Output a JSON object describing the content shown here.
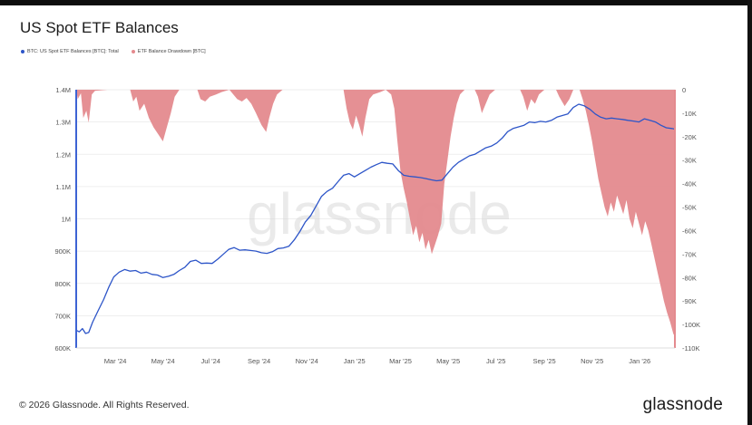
{
  "page": {
    "title": "US Spot ETF Balances",
    "footer_copyright": "© 2026 Glassnode. All Rights Reserved.",
    "brand": "glassnode",
    "watermark": "glassnode"
  },
  "colors": {
    "balance_line": "#2d55c8",
    "drawdown_fill": "#e48a8e",
    "left_axis": "#3d63d4",
    "right_axis": "#e48a8e",
    "grid": "#e9e9e9"
  },
  "chart_data": {
    "type": "line",
    "title": "US Spot ETF Balances",
    "legend_position": "top-left",
    "grid": true,
    "x_ticks": [
      "Mar '24",
      "May '24",
      "Jul '24",
      "Sep '24",
      "Nov '24",
      "Jan '25",
      "Mar '25",
      "May '25",
      "Jul '25",
      "Sep '25",
      "Nov '25",
      "Jan '26"
    ],
    "left_axis": {
      "ticks": [
        "600K",
        "700K",
        "800K",
        "900K",
        "1M",
        "1.1M",
        "1.2M",
        "1.3M",
        "1.4M"
      ],
      "ylim": [
        600000,
        1400000
      ]
    },
    "right_axis": {
      "ticks": [
        "0",
        "-10K",
        "-20K",
        "-30K",
        "-40K",
        "-50K",
        "-60K",
        "-70K",
        "-80K",
        "-90K",
        "-100K",
        "-110K"
      ],
      "ylim": [
        -110000,
        0
      ]
    },
    "x_range": [
      "2024-01-11",
      "2026-02-15"
    ],
    "series": [
      {
        "name": "BTC: US Spot ETF Balances [BTC]: Total",
        "axis": "left",
        "style": "line",
        "points": [
          [
            "2024-01-11",
            655000
          ],
          [
            "2024-01-15",
            650000
          ],
          [
            "2024-01-19",
            660000
          ],
          [
            "2024-01-23",
            645000
          ],
          [
            "2024-01-27",
            648000
          ],
          [
            "2024-02-01",
            680000
          ],
          [
            "2024-02-08",
            715000
          ],
          [
            "2024-02-15",
            750000
          ],
          [
            "2024-02-22",
            790000
          ],
          [
            "2024-02-28",
            820000
          ],
          [
            "2024-03-06",
            835000
          ],
          [
            "2024-03-13",
            843000
          ],
          [
            "2024-03-20",
            838000
          ],
          [
            "2024-03-27",
            840000
          ],
          [
            "2024-04-03",
            832000
          ],
          [
            "2024-04-10",
            835000
          ],
          [
            "2024-04-17",
            828000
          ],
          [
            "2024-04-24",
            826000
          ],
          [
            "2024-05-01",
            818000
          ],
          [
            "2024-05-08",
            822000
          ],
          [
            "2024-05-15",
            828000
          ],
          [
            "2024-05-22",
            840000
          ],
          [
            "2024-05-29",
            850000
          ],
          [
            "2024-06-05",
            868000
          ],
          [
            "2024-06-12",
            872000
          ],
          [
            "2024-06-19",
            862000
          ],
          [
            "2024-06-26",
            863000
          ],
          [
            "2024-07-03",
            862000
          ],
          [
            "2024-07-10",
            875000
          ],
          [
            "2024-07-17",
            890000
          ],
          [
            "2024-07-24",
            905000
          ],
          [
            "2024-07-31",
            911000
          ],
          [
            "2024-08-07",
            903000
          ],
          [
            "2024-08-14",
            904000
          ],
          [
            "2024-08-21",
            902000
          ],
          [
            "2024-08-28",
            900000
          ],
          [
            "2024-09-04",
            895000
          ],
          [
            "2024-09-11",
            893000
          ],
          [
            "2024-09-18",
            898000
          ],
          [
            "2024-09-25",
            908000
          ],
          [
            "2024-10-02",
            910000
          ],
          [
            "2024-10-09",
            915000
          ],
          [
            "2024-10-16",
            935000
          ],
          [
            "2024-10-23",
            960000
          ],
          [
            "2024-10-30",
            990000
          ],
          [
            "2024-11-06",
            1010000
          ],
          [
            "2024-11-13",
            1040000
          ],
          [
            "2024-11-20",
            1070000
          ],
          [
            "2024-11-27",
            1085000
          ],
          [
            "2024-12-04",
            1095000
          ],
          [
            "2024-12-11",
            1115000
          ],
          [
            "2024-12-18",
            1135000
          ],
          [
            "2024-12-25",
            1140000
          ],
          [
            "2025-01-01",
            1130000
          ],
          [
            "2025-01-08",
            1140000
          ],
          [
            "2025-01-15",
            1150000
          ],
          [
            "2025-01-22",
            1160000
          ],
          [
            "2025-01-29",
            1168000
          ],
          [
            "2025-02-05",
            1175000
          ],
          [
            "2025-02-12",
            1172000
          ],
          [
            "2025-02-19",
            1170000
          ],
          [
            "2025-02-26",
            1150000
          ],
          [
            "2025-03-05",
            1135000
          ],
          [
            "2025-03-12",
            1132000
          ],
          [
            "2025-03-19",
            1130000
          ],
          [
            "2025-03-26",
            1128000
          ],
          [
            "2025-04-02",
            1125000
          ],
          [
            "2025-04-09",
            1121000
          ],
          [
            "2025-04-16",
            1118000
          ],
          [
            "2025-04-23",
            1120000
          ],
          [
            "2025-04-30",
            1140000
          ],
          [
            "2025-05-07",
            1160000
          ],
          [
            "2025-05-14",
            1175000
          ],
          [
            "2025-05-21",
            1185000
          ],
          [
            "2025-05-28",
            1195000
          ],
          [
            "2025-06-04",
            1200000
          ],
          [
            "2025-06-11",
            1210000
          ],
          [
            "2025-06-18",
            1220000
          ],
          [
            "2025-06-25",
            1225000
          ],
          [
            "2025-07-02",
            1235000
          ],
          [
            "2025-07-09",
            1250000
          ],
          [
            "2025-07-16",
            1270000
          ],
          [
            "2025-07-23",
            1280000
          ],
          [
            "2025-07-30",
            1285000
          ],
          [
            "2025-08-06",
            1290000
          ],
          [
            "2025-08-13",
            1300000
          ],
          [
            "2025-08-20",
            1298000
          ],
          [
            "2025-08-27",
            1302000
          ],
          [
            "2025-09-03",
            1300000
          ],
          [
            "2025-09-10",
            1305000
          ],
          [
            "2025-09-17",
            1315000
          ],
          [
            "2025-09-24",
            1320000
          ],
          [
            "2025-10-01",
            1325000
          ],
          [
            "2025-10-08",
            1345000
          ],
          [
            "2025-10-15",
            1355000
          ],
          [
            "2025-10-22",
            1350000
          ],
          [
            "2025-10-29",
            1340000
          ],
          [
            "2025-11-05",
            1325000
          ],
          [
            "2025-11-12",
            1315000
          ],
          [
            "2025-11-19",
            1310000
          ],
          [
            "2025-11-26",
            1312000
          ],
          [
            "2025-12-03",
            1310000
          ],
          [
            "2025-12-10",
            1308000
          ],
          [
            "2025-12-17",
            1305000
          ],
          [
            "2025-12-24",
            1303000
          ],
          [
            "2025-12-31",
            1300000
          ],
          [
            "2026-01-07",
            1310000
          ],
          [
            "2026-01-14",
            1305000
          ],
          [
            "2026-01-21",
            1300000
          ],
          [
            "2026-01-28",
            1290000
          ],
          [
            "2026-02-04",
            1282000
          ],
          [
            "2026-02-11",
            1280000
          ],
          [
            "2026-02-15",
            1278000
          ]
        ]
      },
      {
        "name": "ETF Balance Drawdown [BTC]",
        "axis": "right",
        "style": "area",
        "points": [
          [
            "2024-01-11",
            0
          ],
          [
            "2024-01-13",
            -4000
          ],
          [
            "2024-01-17",
            -1500
          ],
          [
            "2024-01-20",
            -12000
          ],
          [
            "2024-01-24",
            -9000
          ],
          [
            "2024-01-27",
            -14000
          ],
          [
            "2024-01-31",
            -2000
          ],
          [
            "2024-02-04",
            -500
          ],
          [
            "2024-02-20",
            0
          ],
          [
            "2024-03-20",
            0
          ],
          [
            "2024-03-24",
            -5000
          ],
          [
            "2024-03-28",
            -3000
          ],
          [
            "2024-04-01",
            -9000
          ],
          [
            "2024-04-07",
            -6000
          ],
          [
            "2024-04-13",
            -12000
          ],
          [
            "2024-04-19",
            -16000
          ],
          [
            "2024-04-25",
            -19000
          ],
          [
            "2024-05-01",
            -22000
          ],
          [
            "2024-05-06",
            -16000
          ],
          [
            "2024-05-11",
            -10000
          ],
          [
            "2024-05-16",
            -3000
          ],
          [
            "2024-05-22",
            0
          ],
          [
            "2024-06-14",
            0
          ],
          [
            "2024-06-18",
            -4000
          ],
          [
            "2024-06-24",
            -5000
          ],
          [
            "2024-06-30",
            -3000
          ],
          [
            "2024-07-08",
            -2000
          ],
          [
            "2024-07-15",
            -1000
          ],
          [
            "2024-07-25",
            0
          ],
          [
            "2024-08-04",
            -4000
          ],
          [
            "2024-08-10",
            -5000
          ],
          [
            "2024-08-16",
            -3500
          ],
          [
            "2024-08-22",
            -6000
          ],
          [
            "2024-08-28",
            -10000
          ],
          [
            "2024-09-04",
            -15000
          ],
          [
            "2024-09-10",
            -18000
          ],
          [
            "2024-09-14",
            -12000
          ],
          [
            "2024-09-19",
            -6000
          ],
          [
            "2024-09-24",
            -2000
          ],
          [
            "2024-10-01",
            0
          ],
          [
            "2024-12-18",
            0
          ],
          [
            "2024-12-22",
            -8000
          ],
          [
            "2024-12-26",
            -14000
          ],
          [
            "2024-12-30",
            -17000
          ],
          [
            "2025-01-03",
            -11000
          ],
          [
            "2025-01-07",
            -15000
          ],
          [
            "2025-01-11",
            -20000
          ],
          [
            "2025-01-15",
            -12000
          ],
          [
            "2025-01-20",
            -4000
          ],
          [
            "2025-01-25",
            -2000
          ],
          [
            "2025-02-03",
            -1000
          ],
          [
            "2025-02-10",
            0
          ],
          [
            "2025-02-17",
            -2000
          ],
          [
            "2025-02-21",
            -8000
          ],
          [
            "2025-02-25",
            -22000
          ],
          [
            "2025-03-01",
            -35000
          ],
          [
            "2025-03-05",
            -42000
          ],
          [
            "2025-03-09",
            -48000
          ],
          [
            "2025-03-13",
            -55000
          ],
          [
            "2025-03-17",
            -62000
          ],
          [
            "2025-03-21",
            -58000
          ],
          [
            "2025-03-25",
            -65000
          ],
          [
            "2025-03-29",
            -61000
          ],
          [
            "2025-04-02",
            -68000
          ],
          [
            "2025-04-06",
            -64000
          ],
          [
            "2025-04-10",
            -70000
          ],
          [
            "2025-04-14",
            -66000
          ],
          [
            "2025-04-18",
            -62000
          ],
          [
            "2025-04-22",
            -57000
          ],
          [
            "2025-04-26",
            -40000
          ],
          [
            "2025-04-30",
            -30000
          ],
          [
            "2025-05-04",
            -20000
          ],
          [
            "2025-05-08",
            -12000
          ],
          [
            "2025-05-12",
            -6000
          ],
          [
            "2025-05-16",
            -2000
          ],
          [
            "2025-05-22",
            0
          ],
          [
            "2025-06-04",
            0
          ],
          [
            "2025-06-08",
            -3000
          ],
          [
            "2025-06-13",
            -10000
          ],
          [
            "2025-06-18",
            -6000
          ],
          [
            "2025-06-23",
            -2000
          ],
          [
            "2025-06-30",
            0
          ],
          [
            "2025-08-01",
            0
          ],
          [
            "2025-08-05",
            -3000
          ],
          [
            "2025-08-10",
            -9000
          ],
          [
            "2025-08-15",
            -4000
          ],
          [
            "2025-08-20",
            -6000
          ],
          [
            "2025-08-25",
            -2000
          ],
          [
            "2025-09-01",
            0
          ],
          [
            "2025-09-16",
            0
          ],
          [
            "2025-09-20",
            -3000
          ],
          [
            "2025-09-27",
            -7000
          ],
          [
            "2025-10-03",
            -4000
          ],
          [
            "2025-10-08",
            0
          ],
          [
            "2025-10-16",
            0
          ],
          [
            "2025-10-20",
            -4000
          ],
          [
            "2025-10-24",
            -9000
          ],
          [
            "2025-10-28",
            -15000
          ],
          [
            "2025-11-01",
            -22000
          ],
          [
            "2025-11-05",
            -30000
          ],
          [
            "2025-11-09",
            -38000
          ],
          [
            "2025-11-13",
            -44000
          ],
          [
            "2025-11-17",
            -50000
          ],
          [
            "2025-11-21",
            -54000
          ],
          [
            "2025-11-25",
            -48000
          ],
          [
            "2025-11-29",
            -52000
          ],
          [
            "2025-12-03",
            -45000
          ],
          [
            "2025-12-07",
            -49000
          ],
          [
            "2025-12-11",
            -53000
          ],
          [
            "2025-12-15",
            -47000
          ],
          [
            "2025-12-19",
            -55000
          ],
          [
            "2025-12-23",
            -59000
          ],
          [
            "2025-12-27",
            -52000
          ],
          [
            "2025-12-31",
            -57000
          ],
          [
            "2026-01-04",
            -62000
          ],
          [
            "2026-01-08",
            -56000
          ],
          [
            "2026-01-12",
            -60000
          ],
          [
            "2026-01-16",
            -66000
          ],
          [
            "2026-01-20",
            -72000
          ],
          [
            "2026-01-24",
            -78000
          ],
          [
            "2026-01-28",
            -84000
          ],
          [
            "2026-02-01",
            -90000
          ],
          [
            "2026-02-05",
            -95000
          ],
          [
            "2026-02-09",
            -99000
          ],
          [
            "2026-02-13",
            -104000
          ],
          [
            "2026-02-15",
            -105000
          ]
        ]
      }
    ]
  }
}
